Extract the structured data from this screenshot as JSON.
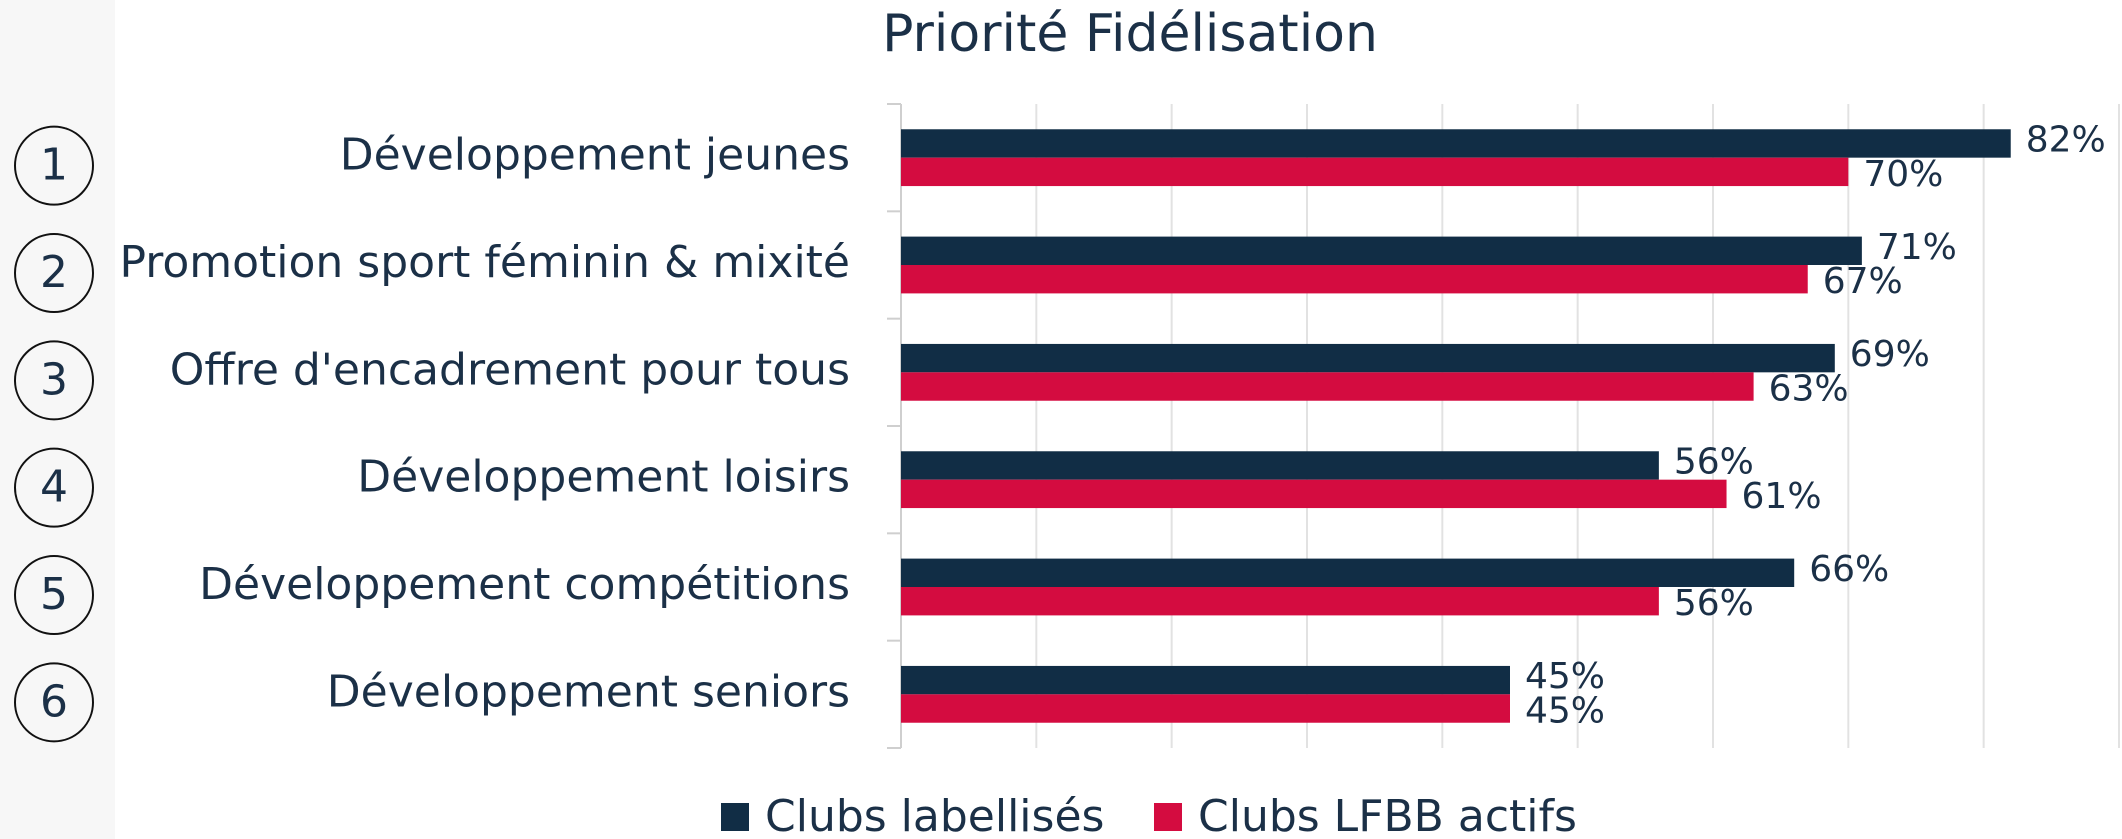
{
  "chart_data": {
    "type": "hbar",
    "title": "Priorité Fidélisation",
    "categories": [
      "Développement jeunes",
      "Promotion sport féminin & mixité",
      "Offre d'encadrement pour tous",
      "Développement loisirs",
      "Développement compétitions",
      "Développement seniors"
    ],
    "ranks": [
      "1",
      "2",
      "3",
      "4",
      "5",
      "6"
    ],
    "series": [
      {
        "name": "Clubs labellisés",
        "color": "#112d45",
        "values": [
          82,
          71,
          69,
          56,
          66,
          45
        ],
        "value_labels": [
          "82%",
          "71%",
          "69%",
          "56%",
          "66%",
          "45%"
        ]
      },
      {
        "name": "Clubs LFBB actifs",
        "color": "#d40c40",
        "values": [
          70,
          67,
          63,
          61,
          56,
          45
        ],
        "value_labels": [
          "70%",
          "67%",
          "63%",
          "61%",
          "56%",
          "45%"
        ]
      }
    ],
    "xlim": [
      0,
      90
    ],
    "xticks": [
      0,
      10,
      20,
      30,
      40,
      50,
      60,
      70,
      80,
      90
    ],
    "grid": true
  }
}
